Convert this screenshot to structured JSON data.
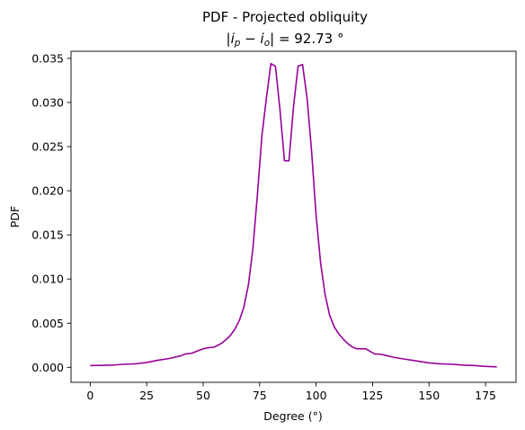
{
  "chart_data": {
    "type": "line",
    "title": "PDF - Projected obliquity",
    "subtitle": "|i_p − i_o| = 92.73 °",
    "subtitle_parts": {
      "open": "|",
      "sym1": "i",
      "sub1": "p",
      "minus": " − ",
      "sym2": "i",
      "sub2": "o",
      "close": "| = 92.73 °"
    },
    "xlabel": "Degree (°)",
    "ylabel": "PDF",
    "xlim": [
      -8.5,
      188.5
    ],
    "ylim": [
      -0.0017,
      0.0358
    ],
    "xticks": [
      0,
      25,
      50,
      75,
      100,
      125,
      150,
      175
    ],
    "yticks": [
      0.0,
      0.005,
      0.01,
      0.015,
      0.02,
      0.025,
      0.03,
      0.035
    ],
    "xtick_labels": [
      "0",
      "25",
      "50",
      "75",
      "100",
      "125",
      "150",
      "175"
    ],
    "ytick_labels": [
      "0.000",
      "0.005",
      "0.010",
      "0.015",
      "0.020",
      "0.025",
      "0.030",
      "0.035"
    ],
    "grid": false,
    "series": [
      {
        "color": "#990099",
        "x": [
          0,
          5,
          10,
          15,
          20,
          25,
          30,
          35,
          40,
          42,
          45,
          48,
          50,
          52,
          55,
          58,
          60,
          62,
          64,
          66,
          68,
          70,
          72,
          74,
          76,
          78,
          80,
          82,
          84,
          86,
          88,
          90,
          92,
          94,
          96,
          98,
          100,
          102,
          104,
          106,
          108,
          110,
          112,
          114,
          116,
          118,
          120,
          122,
          124,
          126,
          128,
          130,
          135,
          140,
          145,
          150,
          155,
          160,
          165,
          170,
          175,
          180
        ],
        "y": [
          0.0002,
          0.00022,
          0.00025,
          0.00035,
          0.0004,
          0.00055,
          0.0008,
          0.001,
          0.0013,
          0.0015,
          0.0016,
          0.0019,
          0.0021,
          0.0022,
          0.0023,
          0.0027,
          0.0031,
          0.0036,
          0.0043,
          0.0053,
          0.0068,
          0.0093,
          0.0134,
          0.0195,
          0.0262,
          0.0305,
          0.0344,
          0.0341,
          0.0292,
          0.0234,
          0.0234,
          0.0295,
          0.0341,
          0.0343,
          0.0305,
          0.0245,
          0.0172,
          0.0118,
          0.0082,
          0.0059,
          0.0046,
          0.0038,
          0.0032,
          0.0027,
          0.0023,
          0.0021,
          0.0021,
          0.0021,
          0.0018,
          0.0015,
          0.0015,
          0.0014,
          0.0011,
          0.0009,
          0.0007,
          0.0005,
          0.0004,
          0.00035,
          0.00025,
          0.0002,
          0.0001,
          5e-05
        ]
      }
    ]
  }
}
